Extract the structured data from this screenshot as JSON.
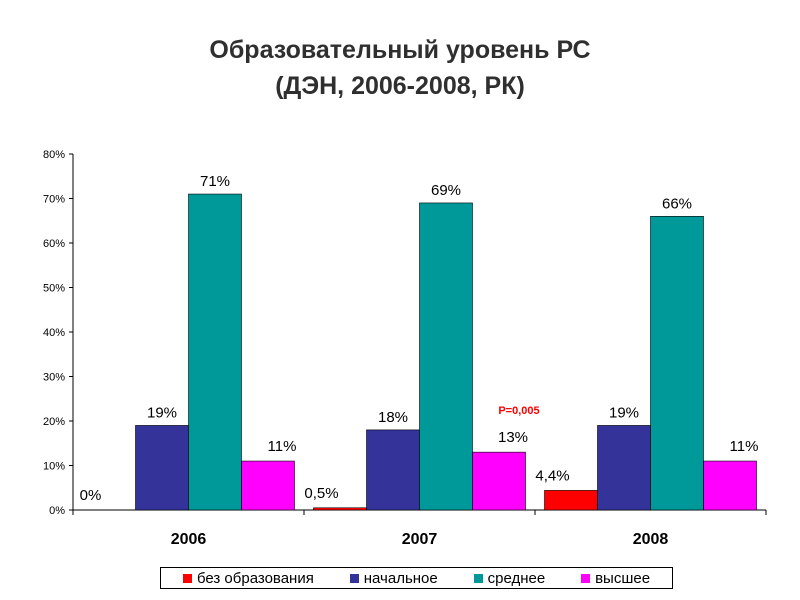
{
  "title_line1": "Образовательный уровень РС",
  "title_line2": "(ДЭН, 2006-2008, РК)",
  "annotation": "P=0,005",
  "chart_data": {
    "type": "bar",
    "categories": [
      "2006",
      "2007",
      "2008"
    ],
    "series": [
      {
        "name": "без образования",
        "color": "#ff0000",
        "values": [
          0,
          0.5,
          4.4
        ],
        "labels": [
          "0%",
          "0,5%",
          "4,4%"
        ]
      },
      {
        "name": "начальное",
        "color": "#333399",
        "values": [
          19,
          18,
          19
        ],
        "labels": [
          "19%",
          "18%",
          "19%"
        ]
      },
      {
        "name": "среднее",
        "color": "#009999",
        "values": [
          71,
          69,
          66
        ],
        "labels": [
          "71%",
          "69%",
          "66%"
        ]
      },
      {
        "name": "высшее",
        "color": "#ff00ff",
        "values": [
          11,
          13,
          11
        ],
        "labels": [
          "11%",
          "13%",
          "11%"
        ]
      }
    ],
    "ylim": [
      0,
      80
    ],
    "yticks": [
      "0%",
      "10%",
      "20%",
      "30%",
      "40%",
      "50%",
      "60%",
      "70%",
      "80%"
    ],
    "grid": false,
    "legend_position": "bottom"
  }
}
